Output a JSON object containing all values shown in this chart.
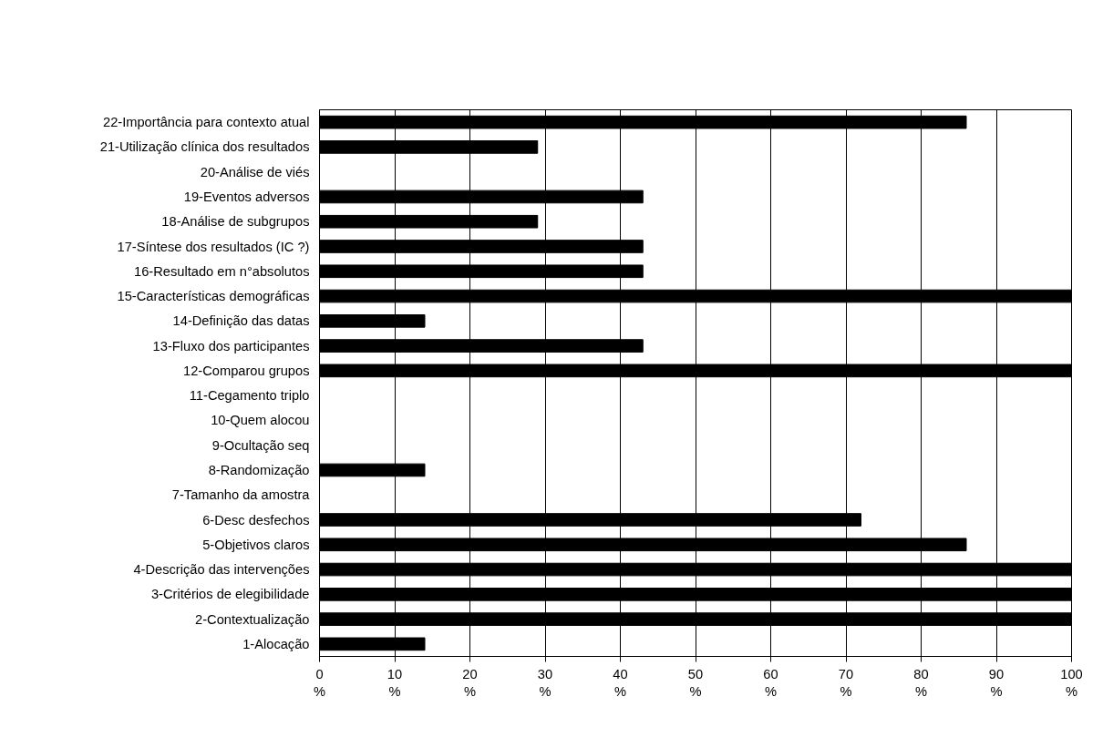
{
  "chart_data": {
    "type": "bar",
    "orientation": "horizontal",
    "color": "#000000",
    "categories": [
      "22-Importância para contexto atual",
      "21-Utilização clínica dos resultados",
      "20-Análise de viés",
      "19-Eventos adversos",
      "18-Análise de subgrupos",
      "17-Síntese dos resultados (IC ?)",
      "16-Resultado em n°absolutos",
      "15-Características demográficas",
      "14-Definição das datas",
      "13-Fluxo dos participantes",
      "12-Comparou grupos",
      "11-Cegamento triplo",
      "10-Quem alocou",
      "9-Ocultação seq",
      "8-Randomização",
      "7-Tamanho da amostra",
      "6-Desc desfechos",
      "5-Objetivos claros",
      "4-Descrição das intervenções",
      "3-Critérios de elegibilidade",
      "2-Contextualização",
      "1-Alocação"
    ],
    "values": [
      86,
      29,
      0,
      43,
      29,
      43,
      43,
      100,
      14,
      43,
      100,
      0,
      0,
      0,
      14,
      0,
      72,
      86,
      100,
      100,
      100,
      14
    ],
    "xlim": [
      0,
      100
    ],
    "xticks": [
      {
        "value": 0,
        "label": "0\n%"
      },
      {
        "value": 10,
        "label": "10\n%"
      },
      {
        "value": 20,
        "label": "20\n%"
      },
      {
        "value": 30,
        "label": "30\n%"
      },
      {
        "value": 40,
        "label": "40\n%"
      },
      {
        "value": 50,
        "label": "50\n%"
      },
      {
        "value": 60,
        "label": "60\n%"
      },
      {
        "value": 70,
        "label": "70\n%"
      },
      {
        "value": 80,
        "label": "80\n%"
      },
      {
        "value": 90,
        "label": "90\n%"
      },
      {
        "value": 100,
        "label": "100\n%"
      }
    ],
    "grid": "x"
  }
}
